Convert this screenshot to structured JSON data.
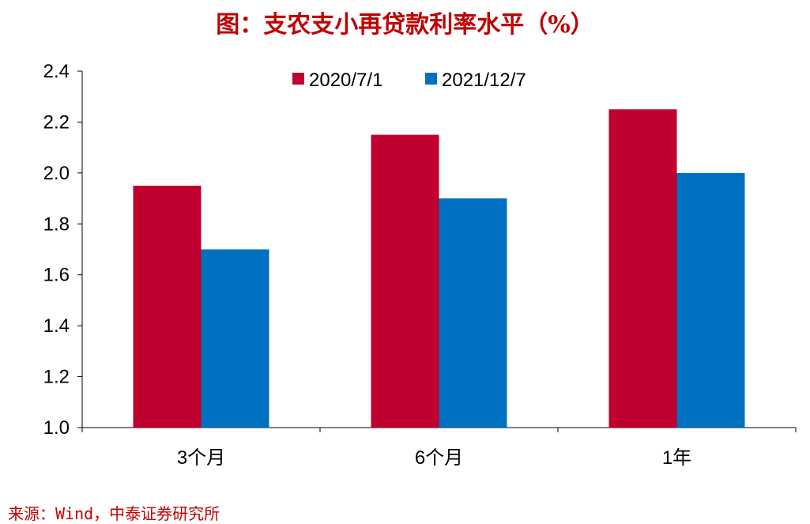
{
  "title": "图：支农支小再贷款利率水平（%）",
  "source": "来源：Wind，中泰证券研究所",
  "chart_data": {
    "type": "bar",
    "title": "图：支农支小再贷款利率水平（%）",
    "categories": [
      "3个月",
      "6个月",
      "1年"
    ],
    "series": [
      {
        "name": "2020/7/1",
        "values": [
          1.95,
          2.15,
          2.25
        ],
        "color": "#C0002F"
      },
      {
        "name": "2021/12/7",
        "values": [
          1.7,
          1.9,
          2.0
        ],
        "color": "#0070C0"
      }
    ],
    "ylim": [
      1.0,
      2.4
    ],
    "yticks": [
      "1.0",
      "1.2",
      "1.4",
      "1.6",
      "1.8",
      "2.0",
      "2.2",
      "2.4"
    ],
    "xlabel": "",
    "ylabel": "",
    "grid": false,
    "legend": "top-center"
  }
}
